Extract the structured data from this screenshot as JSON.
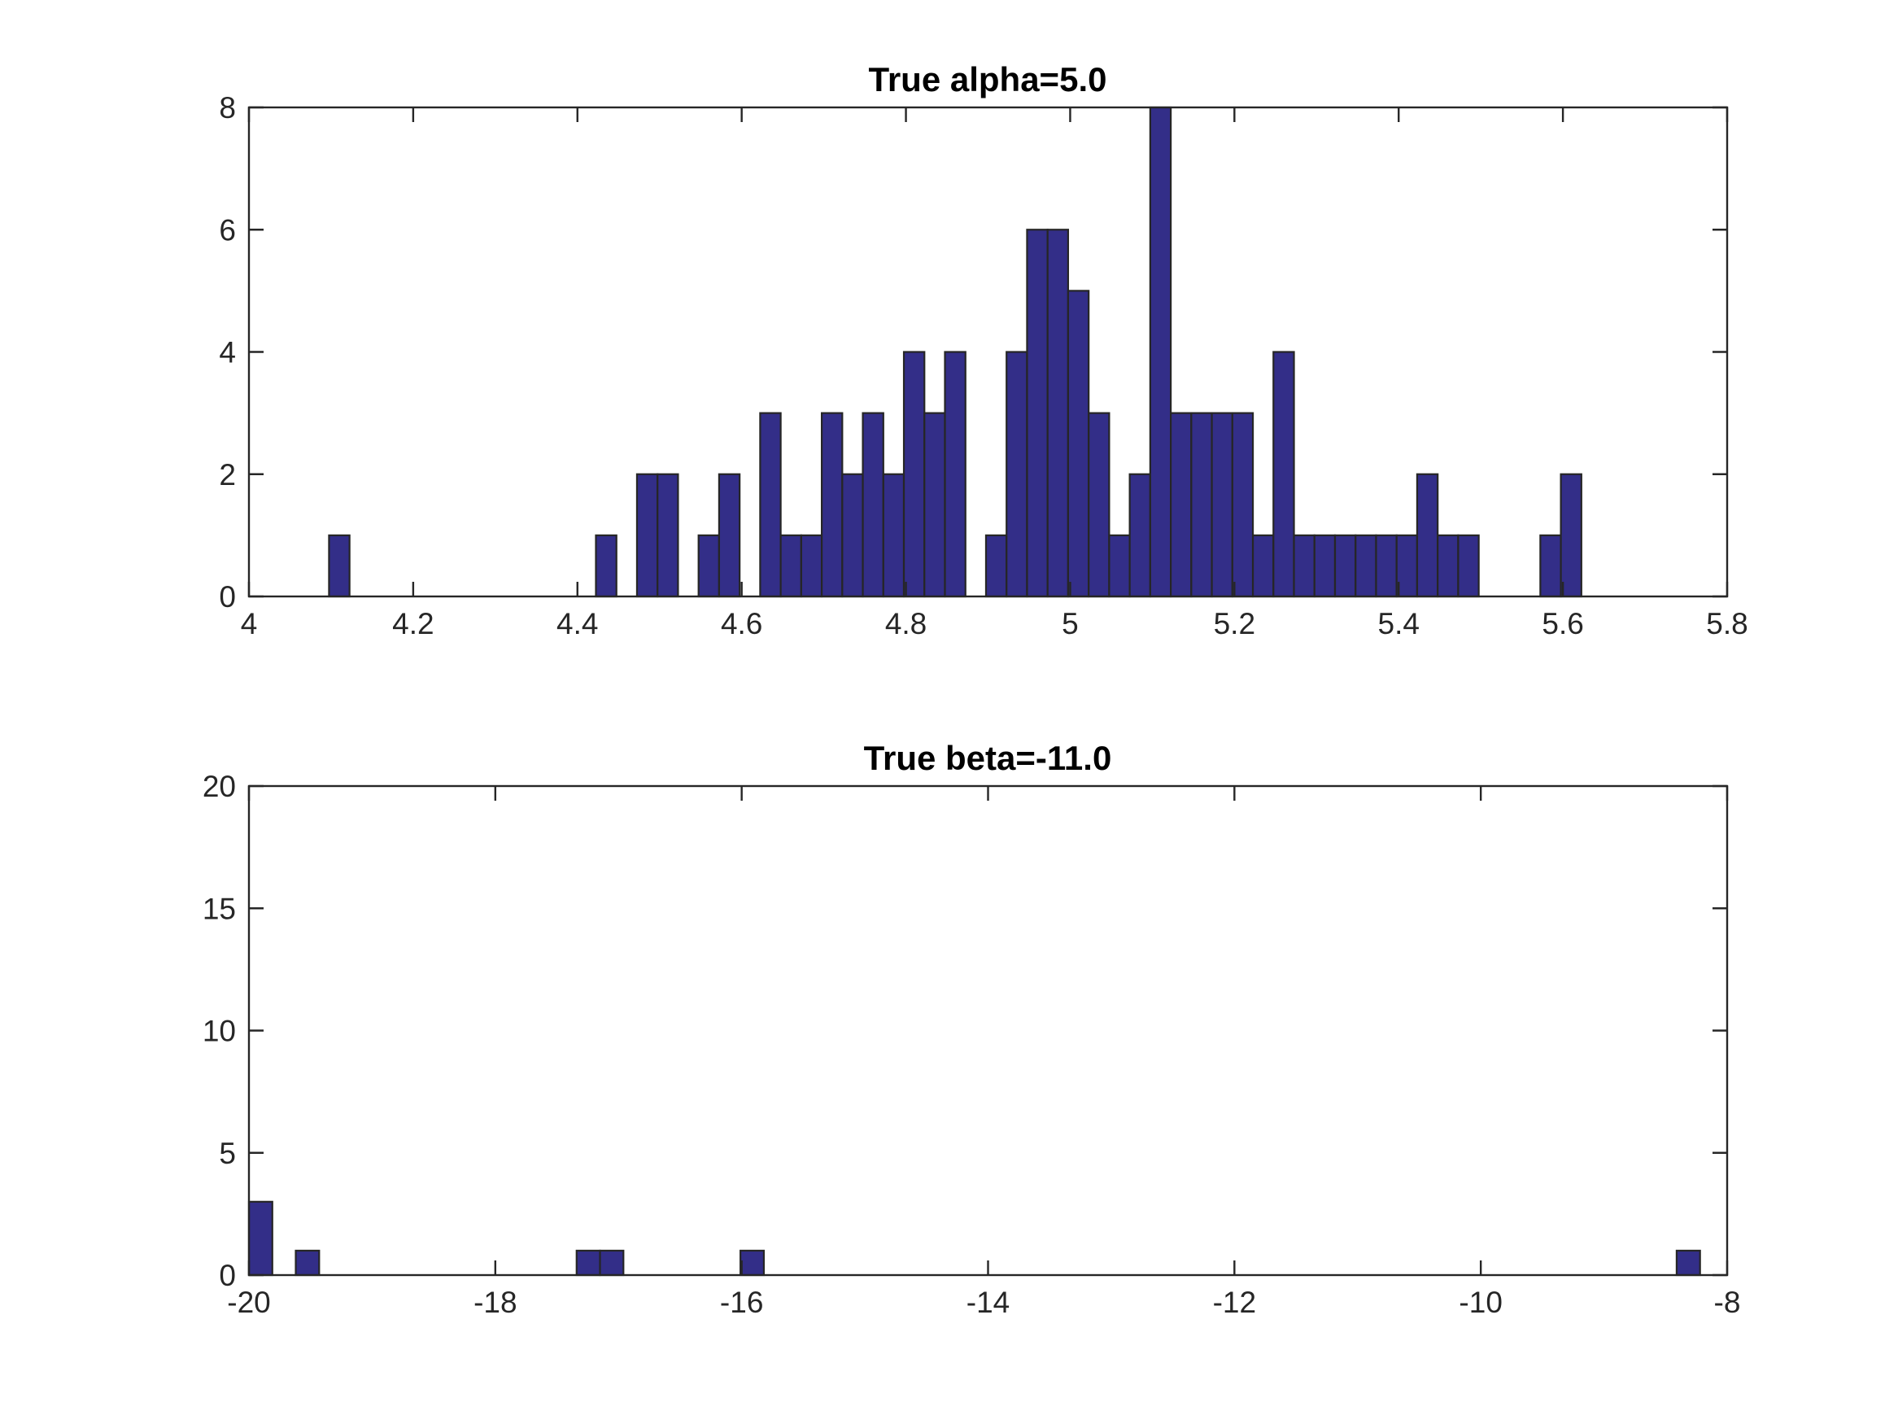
{
  "chart_data": [
    {
      "type": "bar",
      "title": "True alpha=5.0",
      "xlabel": "",
      "ylabel": "",
      "xlim": [
        4,
        5.8
      ],
      "ylim": [
        0,
        8
      ],
      "xticks": [
        "4",
        "4.2",
        "4.4",
        "4.6",
        "4.8",
        "5",
        "5.2",
        "5.4",
        "5.6",
        "5.8"
      ],
      "yticks": [
        "0",
        "2",
        "4",
        "6",
        "8"
      ],
      "bin_width": 0.025,
      "bin_start": 4.0975,
      "values": [
        1,
        0,
        0,
        0,
        0,
        0,
        0,
        0,
        0,
        0,
        0,
        0,
        0,
        1,
        0,
        2,
        2,
        0,
        1,
        2,
        0,
        3,
        1,
        1,
        3,
        2,
        3,
        2,
        4,
        3,
        4,
        0,
        1,
        4,
        6,
        6,
        5,
        3,
        1,
        2,
        8,
        3,
        3,
        3,
        3,
        1,
        4,
        1,
        1,
        1,
        1,
        1,
        1,
        2,
        1,
        1,
        0,
        0,
        0,
        1,
        2
      ],
      "bar_color": "#332e88",
      "grid": false
    },
    {
      "type": "bar",
      "title": "True beta=-11.0",
      "xlabel": "",
      "ylabel": "",
      "xlim": [
        -20,
        -8
      ],
      "ylim": [
        0,
        20
      ],
      "xticks": [
        "-20",
        "-18",
        "-16",
        "-14",
        "-12",
        "-10",
        "-8"
      ],
      "yticks": [
        "0",
        "5",
        "10",
        "15",
        "20"
      ],
      "bin_width": 0.19,
      "bin_start": -20.0,
      "values": [
        3,
        0,
        1,
        0,
        0,
        0,
        0,
        0,
        0,
        0,
        0,
        0,
        0,
        0,
        1,
        1,
        0,
        0,
        0,
        0,
        0,
        1,
        0,
        0,
        0,
        0,
        0,
        0,
        0,
        0,
        0,
        0,
        0,
        0,
        0,
        0,
        0,
        0,
        0,
        0,
        0,
        0,
        0,
        0,
        0,
        0,
        0,
        0,
        0,
        0,
        0,
        0,
        0,
        0,
        0,
        0,
        0,
        0,
        0,
        0,
        0,
        1,
        0,
        0
      ],
      "bar_color": "#332e88",
      "grid": false
    }
  ]
}
